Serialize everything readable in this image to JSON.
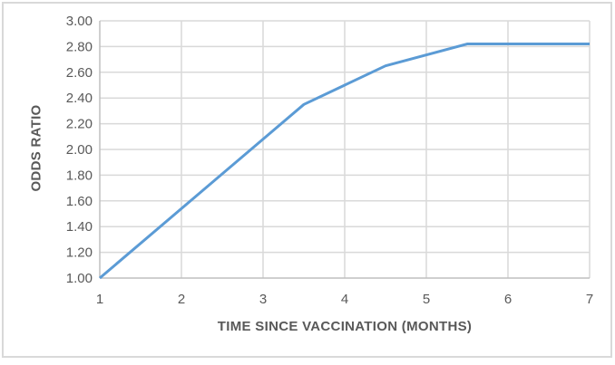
{
  "chart_data": {
    "type": "line",
    "title": "",
    "xlabel": "TIME SINCE VACCINATION (MONTHS)",
    "ylabel": "ODDS RATIO",
    "xlim": [
      1,
      7
    ],
    "ylim": [
      1.0,
      3.0
    ],
    "x_ticks": [
      1,
      2,
      3,
      4,
      5,
      6,
      7
    ],
    "x_tick_labels": [
      "1",
      "2",
      "3",
      "4",
      "5",
      "6",
      "7"
    ],
    "y_ticks": [
      1.0,
      1.2,
      1.4,
      1.6,
      1.8,
      2.0,
      2.2,
      2.4,
      2.6,
      2.8,
      3.0
    ],
    "y_tick_labels": [
      "1.00",
      "1.20",
      "1.40",
      "1.60",
      "1.80",
      "2.00",
      "2.20",
      "2.40",
      "2.60",
      "2.80",
      "3.00"
    ],
    "grid": true,
    "legend": false,
    "series": [
      {
        "name": "odds-ratio-line",
        "color": "#5B9BD5",
        "x": [
          1,
          3.5,
          4.5,
          5.5,
          7
        ],
        "y": [
          1.0,
          2.35,
          2.65,
          2.82,
          2.82
        ]
      }
    ],
    "colors": {
      "background": "#FFFFFF",
      "chart_border": "#D9D9D9",
      "gridline": "#D9D9D9",
      "axis_line": "#BFBFBF",
      "tick_text": "#595959",
      "axis_title_text": "#595959",
      "series_line": "#5B9BD5"
    }
  }
}
